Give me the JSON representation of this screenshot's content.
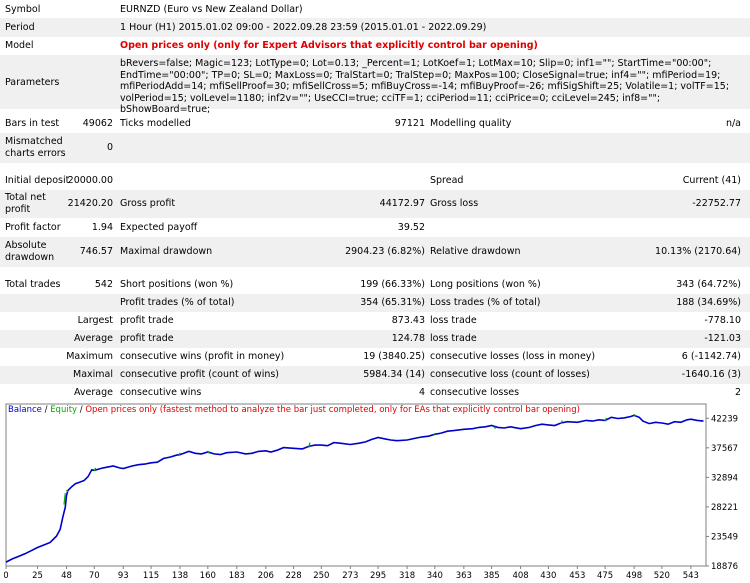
{
  "report": {
    "symbol": {
      "label": "Symbol",
      "value": "EURNZD (Euro vs New Zealand Dollar)"
    },
    "period": {
      "label": "Period",
      "value": "1 Hour (H1) 2015.01.02 09:00 - 2022.09.28 23:59 (2015.01.01 - 2022.09.29)"
    },
    "model": {
      "label": "Model",
      "value": "Open prices only (only for Expert Advisors that explicitly control bar opening)"
    },
    "parameters": {
      "label": "Parameters",
      "value": "bRevers=false; Magic=123; LotType=0; Lot=0.13; _Percent=1; LotKoef=1; LotMax=10; Slip=0; inf1=\"\"; StartTime=\"00:00\"; EndTime=\"00:00\"; TP=0; SL=0; MaxLoss=0; TralStart=0; TralStep=0; MaxPos=100; CloseSignal=true; inf4=\"\"; mfiPeriod=19; mfiPeriodAdd=14; mfiSellProof=30; mfiSellCross=5; mfiBuyCross=-14; mfiBuyProof=-26; mfiSigShift=25; Volatile=1; volTF=15; volPeriod=15; volLevel=1180; inf2v=\"\"; UseCCI=true; cciTF=1; cciPeriod=11; cciPrice=0; cciLevel=245; inf8=\"\"; bShowBoard=true;"
    },
    "bars_in_test": {
      "label": "Bars in test",
      "value": "49062"
    },
    "ticks_modelled": {
      "label": "Ticks modelled",
      "value": "97121"
    },
    "modelling_quality": {
      "label": "Modelling quality",
      "value": "n/a"
    },
    "mismatched": {
      "label": "Mismatched charts errors",
      "value": "0"
    },
    "initial_deposit": {
      "label": "Initial deposit",
      "value": "20000.00"
    },
    "spread": {
      "label": "Spread",
      "value": "Current (41)"
    },
    "total_net_profit": {
      "label": "Total net profit",
      "value": "21420.20"
    },
    "gross_profit": {
      "label": "Gross profit",
      "value": "44172.97"
    },
    "gross_loss": {
      "label": "Gross loss",
      "value": "-22752.77"
    },
    "profit_factor": {
      "label": "Profit factor",
      "value": "1.94"
    },
    "expected_payoff": {
      "label": "Expected payoff",
      "value": "39.52"
    },
    "absolute_drawdown": {
      "label": "Absolute drawdown",
      "value": "746.57"
    },
    "maximal_drawdown": {
      "label": "Maximal drawdown",
      "value": "2904.23 (6.82%)"
    },
    "relative_drawdown": {
      "label": "Relative drawdown",
      "value": "10.13% (2170.64)"
    },
    "total_trades": {
      "label": "Total trades",
      "value": "542"
    },
    "short_positions": {
      "label": "Short positions (won %)",
      "value": "199 (66.33%)"
    },
    "long_positions": {
      "label": "Long positions (won %)",
      "value": "343 (64.72%)"
    },
    "profit_trades": {
      "label": "Profit trades (% of total)",
      "value": "354 (65.31%)"
    },
    "loss_trades": {
      "label": "Loss trades (% of total)",
      "value": "188 (34.69%)"
    },
    "largest": {
      "label": "Largest",
      "profit_label": "profit trade",
      "profit_value": "873.43",
      "loss_label": "loss trade",
      "loss_value": "-778.10"
    },
    "average": {
      "label": "Average",
      "profit_label": "profit trade",
      "profit_value": "124.78",
      "loss_label": "loss trade",
      "loss_value": "-121.03"
    },
    "maximum": {
      "label": "Maximum",
      "wins_label": "consecutive wins (profit in money)",
      "wins_value": "19 (3840.25)",
      "losses_label": "consecutive losses (loss in money)",
      "losses_value": "6 (-1142.74)"
    },
    "maximal": {
      "label": "Maximal",
      "profit_label": "consecutive profit (count of wins)",
      "profit_value": "5984.34 (14)",
      "loss_label": "consecutive loss (count of losses)",
      "loss_value": "-1640.16 (3)"
    },
    "average_consec": {
      "label": "Average",
      "wins_label": "consecutive wins",
      "wins_value": "4",
      "losses_label": "consecutive losses",
      "losses_value": "2"
    }
  },
  "chart_data": {
    "type": "line",
    "legend": {
      "balance": "Balance",
      "sep1": " / ",
      "equity": "Equity",
      "sep2": " / ",
      "note": "Open prices only (fastest method to analyze the bar just completed, only for EAs that explicitly control bar opening)"
    },
    "colors": {
      "balance": "#0000cc",
      "equity": "#00aa00",
      "note": "#dd0000"
    },
    "x_ticks": [
      "0",
      "25",
      "48",
      "70",
      "93",
      "115",
      "138",
      "160",
      "183",
      "206",
      "228",
      "250",
      "273",
      "295",
      "318",
      "340",
      "363",
      "385",
      "408",
      "430",
      "453",
      "475",
      "498",
      "520",
      "543"
    ],
    "y_ticks": [
      "42239",
      "37567",
      "32894",
      "28221",
      "23549",
      "18876"
    ],
    "ylim": [
      18876,
      44500
    ],
    "xlim": [
      0,
      555
    ],
    "series": [
      {
        "name": "Balance",
        "x": [
          0,
          5,
          10,
          15,
          20,
          25,
          30,
          35,
          40,
          43,
          45,
          47,
          48,
          49,
          52,
          55,
          58,
          62,
          65,
          68,
          70,
          75,
          80,
          85,
          90,
          93,
          100,
          105,
          110,
          115,
          120,
          125,
          130,
          135,
          138,
          145,
          150,
          155,
          160,
          165,
          170,
          175,
          183,
          190,
          195,
          200,
          206,
          210,
          215,
          220,
          228,
          235,
          240,
          245,
          250,
          255,
          260,
          265,
          273,
          280,
          285,
          290,
          295,
          300,
          305,
          310,
          318,
          325,
          330,
          335,
          340,
          345,
          350,
          355,
          363,
          370,
          375,
          380,
          385,
          390,
          395,
          400,
          408,
          415,
          420,
          425,
          430,
          435,
          440,
          445,
          453,
          460,
          465,
          470,
          475,
          480,
          485,
          490,
          495,
          498,
          502,
          505,
          510,
          515,
          520,
          525,
          530,
          535,
          540,
          543,
          548,
          553
        ],
        "y": [
          19500,
          20000,
          20400,
          20800,
          21300,
          21800,
          22200,
          22600,
          23600,
          24700,
          26600,
          28200,
          30000,
          30800,
          31400,
          31900,
          32100,
          32400,
          33000,
          34100,
          34000,
          34300,
          34500,
          34700,
          34400,
          34300,
          34700,
          34900,
          35000,
          35200,
          35300,
          35900,
          36100,
          36400,
          36500,
          37000,
          36700,
          36600,
          36900,
          36600,
          36500,
          36800,
          36900,
          36600,
          36700,
          37000,
          37100,
          36900,
          37200,
          37600,
          37500,
          37400,
          37800,
          38000,
          38000,
          37900,
          38400,
          38300,
          38100,
          38300,
          38500,
          38900,
          39200,
          39000,
          38800,
          38700,
          38800,
          39100,
          39300,
          39400,
          39700,
          39900,
          40200,
          40300,
          40500,
          40600,
          40800,
          40900,
          41100,
          40800,
          40700,
          40900,
          40600,
          40800,
          41100,
          41300,
          41200,
          41100,
          41500,
          41700,
          41600,
          41900,
          41800,
          42000,
          41900,
          42400,
          42200,
          42300,
          42500,
          42700,
          42400,
          41800,
          41400,
          41600,
          41500,
          41300,
          41700,
          41600,
          42000,
          42100,
          41900,
          41800
        ]
      },
      {
        "name": "Equity",
        "x": [
          46,
          47,
          48,
          49,
          70,
          71,
          137,
          138,
          160,
          161,
          240,
          241,
          339,
          340,
          387,
          388,
          440,
          441,
          475,
          476,
          498,
          499
        ],
        "y": [
          28600,
          30400,
          30900,
          30600,
          33900,
          34400,
          36300,
          36800,
          37100,
          36700,
          37600,
          38400,
          39500,
          39900,
          40900,
          40600,
          41400,
          41900,
          41800,
          42300,
          42900,
          42500
        ]
      }
    ]
  }
}
